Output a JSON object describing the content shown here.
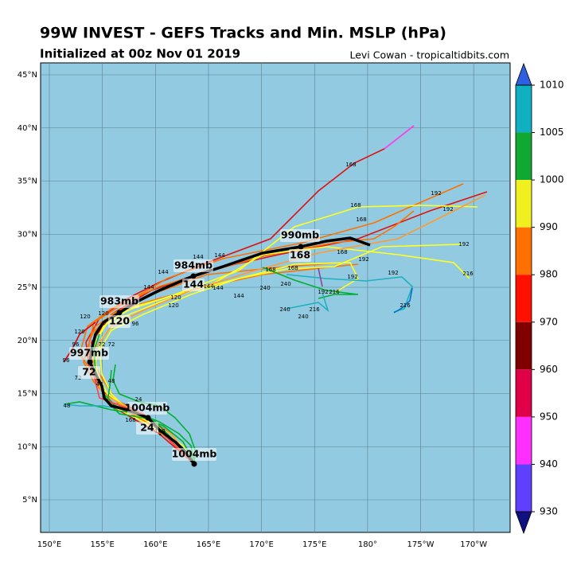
{
  "header": {
    "title": "99W INVEST - GEFS Tracks and Min. MSLP (hPa)",
    "subtitle": "Initialized at 00z Nov 01 2019",
    "credit": "Levi Cowan - tropicaltidbits.com"
  },
  "map": {
    "lat_labels": [
      "45°N",
      "40°N",
      "35°N",
      "30°N",
      "25°N",
      "20°N",
      "15°N",
      "10°N",
      "5°N"
    ],
    "lon_labels": [
      "150°E",
      "155°E",
      "160°E",
      "165°E",
      "170°E",
      "175°E",
      "180°",
      "175°W",
      "170°W"
    ],
    "mean_track_labels": [
      {
        "pressure": "1004mb",
        "hour": "24"
      },
      {
        "pressure": "997mb",
        "hour": "72"
      },
      {
        "pressure": "983mb",
        "hour": "120"
      },
      {
        "pressure": "984mb",
        "hour": "144"
      },
      {
        "pressure": "990mb",
        "hour": "168"
      }
    ],
    "end_pressure": "1004mb",
    "member_labels": [
      "168",
      "168",
      "168",
      "192",
      "192",
      "192",
      "192",
      "192",
      "192",
      "192",
      "216",
      "216",
      "216",
      "216",
      "240",
      "240",
      "240",
      "240",
      "144",
      "144",
      "144",
      "144",
      "144",
      "144",
      "144",
      "120",
      "120",
      "120",
      "120",
      "120",
      "96",
      "96",
      "96",
      "72",
      "72",
      "72",
      "48",
      "48",
      "48",
      "24",
      "24",
      "168",
      "168",
      "168",
      "168",
      "168"
    ]
  },
  "colorbar": {
    "labels": [
      "1010",
      "1005",
      "1000",
      "990",
      "980",
      "970",
      "960",
      "950",
      "940",
      "930"
    ]
  }
}
